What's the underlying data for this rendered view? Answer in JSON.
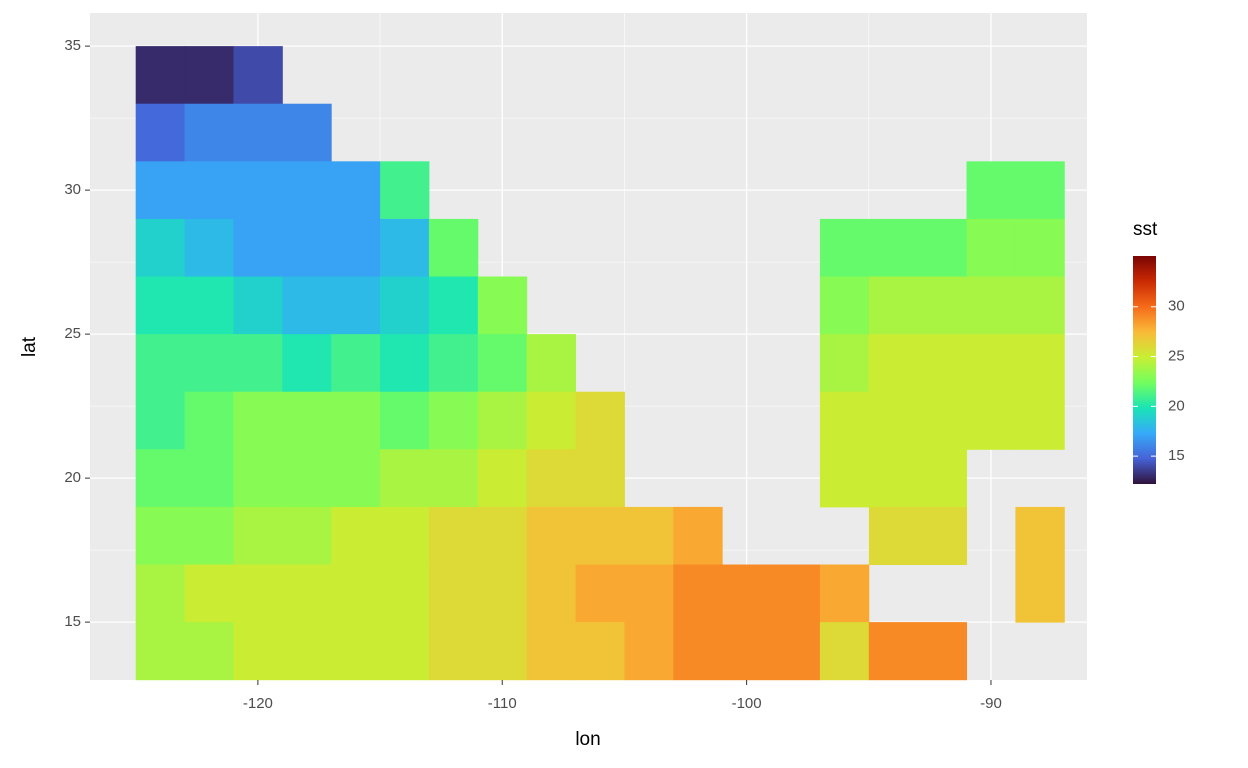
{
  "chart_data": {
    "type": "raster",
    "xlabel": "lon",
    "ylabel": "lat",
    "x": [
      -124,
      -122,
      -120,
      -118,
      -116,
      -114,
      -112,
      -110,
      -108,
      -106,
      -104,
      -102,
      -100,
      -98,
      -96,
      -94,
      -92,
      -90,
      -88
    ],
    "y": [
      34,
      32,
      30,
      28,
      26,
      24,
      22,
      20,
      18,
      16,
      14
    ],
    "values": [
      [
        13,
        13,
        14,
        null,
        null,
        null,
        null,
        null,
        null,
        null,
        null,
        null,
        null,
        null,
        null,
        null,
        null,
        null,
        null
      ],
      [
        15,
        16,
        16,
        16,
        null,
        null,
        null,
        null,
        null,
        null,
        null,
        null,
        null,
        null,
        null,
        null,
        null,
        null,
        null
      ],
      [
        17,
        17,
        17,
        17,
        17,
        21,
        null,
        null,
        null,
        null,
        null,
        null,
        null,
        null,
        null,
        null,
        null,
        22,
        22
      ],
      [
        19,
        18,
        17,
        17,
        17,
        18,
        22,
        null,
        null,
        null,
        null,
        null,
        null,
        null,
        22,
        22,
        22,
        23,
        23
      ],
      [
        20,
        20,
        19,
        18,
        18,
        19,
        20,
        23,
        null,
        null,
        null,
        null,
        null,
        null,
        23,
        24,
        24,
        24,
        24
      ],
      [
        21,
        21,
        21,
        20,
        21,
        20,
        21,
        22,
        24,
        null,
        null,
        null,
        null,
        null,
        24,
        25,
        25,
        25,
        25
      ],
      [
        21,
        22,
        23,
        23,
        23,
        22,
        23,
        24,
        25,
        26,
        null,
        null,
        null,
        null,
        25,
        25,
        25,
        25,
        25
      ],
      [
        22,
        22,
        23,
        23,
        23,
        24,
        24,
        25,
        26,
        26,
        null,
        null,
        null,
        null,
        25,
        25,
        25,
        null,
        null
      ],
      [
        23,
        23,
        24,
        24,
        25,
        25,
        26,
        26,
        27,
        27,
        27,
        28,
        null,
        null,
        null,
        26,
        26,
        null,
        27
      ],
      [
        24,
        25,
        25,
        25,
        25,
        25,
        26,
        26,
        27,
        28,
        28,
        29,
        29,
        29,
        28,
        null,
        null,
        null,
        27
      ],
      [
        24,
        24,
        25,
        25,
        25,
        25,
        26,
        26,
        27,
        27,
        28,
        29,
        29,
        29,
        26,
        29,
        29,
        null,
        null
      ]
    ],
    "xlim": [
      -126.87,
      -86.07
    ],
    "ylim": [
      12.99,
      36.15
    ],
    "xticks": [
      -120,
      -110,
      -100,
      -90
    ],
    "yticks": [
      15,
      20,
      25,
      30,
      35
    ],
    "grid": true,
    "legend": {
      "title": "sst",
      "lim": [
        12.2,
        35.1
      ],
      "ticks": [
        15,
        20,
        25,
        30
      ],
      "colors": [
        "#30123b",
        "#4662d7",
        "#36aaf9",
        "#1ae4b6",
        "#72fe5e",
        "#c8ef34",
        "#faba39",
        "#f66b19",
        "#ca2a04",
        "#7a0403"
      ]
    }
  }
}
